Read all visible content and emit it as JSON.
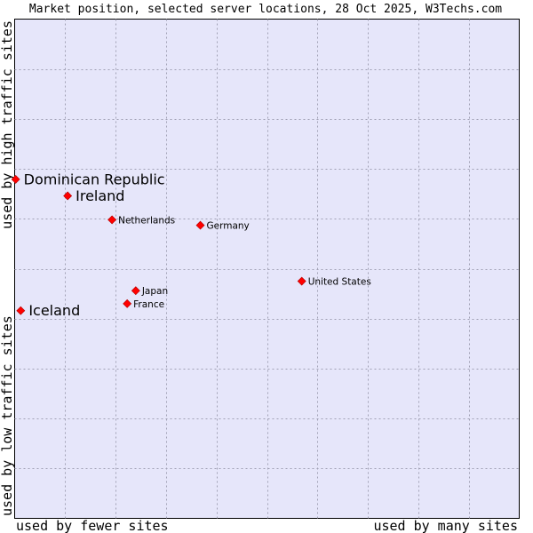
{
  "chart_data": {
    "type": "scatter",
    "title": "Market position, selected server locations, 28 Oct 2025, W3Techs.com",
    "xlabel_left": "used by fewer sites",
    "xlabel_right": "used by many sites",
    "ylabel_bottom": "used by low traffic sites",
    "ylabel_top": "used by high traffic sites",
    "xlim": [
      0,
      100
    ],
    "ylim": [
      0,
      100
    ],
    "grid": true,
    "colors": {
      "plot_bg": "#e6e6fa",
      "grid": "#a0a0b4",
      "marker": "#ff0000",
      "marker_edge": "#b00000"
    },
    "points": [
      {
        "label": "Dominican Republic",
        "x": 0.2,
        "y": 67.9,
        "emphasis": true
      },
      {
        "label": "Ireland",
        "x": 10.5,
        "y": 64.6,
        "emphasis": true
      },
      {
        "label": "Netherlands",
        "x": 19.3,
        "y": 59.8,
        "emphasis": false
      },
      {
        "label": "Germany",
        "x": 36.8,
        "y": 58.7,
        "emphasis": false
      },
      {
        "label": "United States",
        "x": 56.9,
        "y": 47.5,
        "emphasis": false
      },
      {
        "label": "Japan",
        "x": 24.0,
        "y": 45.6,
        "emphasis": false
      },
      {
        "label": "France",
        "x": 22.3,
        "y": 43.0,
        "emphasis": false
      },
      {
        "label": "Iceland",
        "x": 1.2,
        "y": 41.6,
        "emphasis": true
      }
    ]
  }
}
